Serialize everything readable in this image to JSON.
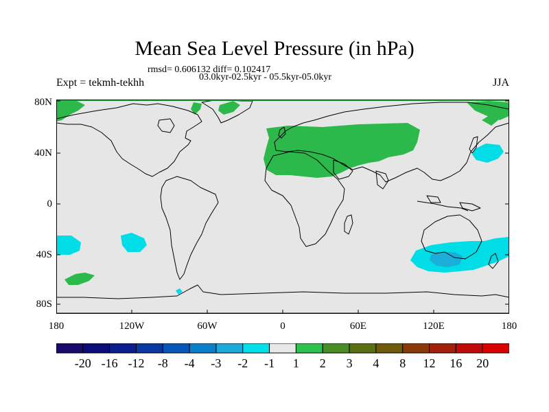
{
  "figure": {
    "title": "Mean Sea Level Pressure (in hPa)",
    "stats_line": "rmsd= 0.606132 diff= 0.102417",
    "experiment_label": "Expt = tekmh-tekhh",
    "periods_label": "03.0kyr-02.5kyr - 05.5kyr-05.0kyr",
    "season": "JJA"
  },
  "axes": {
    "x_ticks": [
      "180",
      "120W",
      "60W",
      "0",
      "60E",
      "120E",
      "180"
    ],
    "y_ticks": [
      "80N",
      "40N",
      "0",
      "40S",
      "80S"
    ]
  },
  "colorbar": {
    "labels": [
      "-20",
      "-16",
      "-12",
      "-8",
      "-4",
      "-3",
      "-2",
      "-1",
      "1",
      "2",
      "3",
      "4",
      "8",
      "12",
      "16",
      "20"
    ],
    "colors": [
      "#1a0a6b",
      "#0c0c78",
      "#0b1e8c",
      "#0a38a0",
      "#0657b8",
      "#0a7ec8",
      "#1ca8d8",
      "#00e0e8",
      "#e8e8e8",
      "#2ec04c",
      "#4a8c24",
      "#5a6e12",
      "#6e5a0a",
      "#8a3a0a",
      "#a0200a",
      "#c00a0a",
      "#d80000"
    ]
  },
  "palette": {
    "background": "#e6e6e6",
    "positive_1_2": "#2db84b",
    "negative_2_1": "#00dde6",
    "negative_3_2": "#1aaed8",
    "coast": "#000000"
  }
}
